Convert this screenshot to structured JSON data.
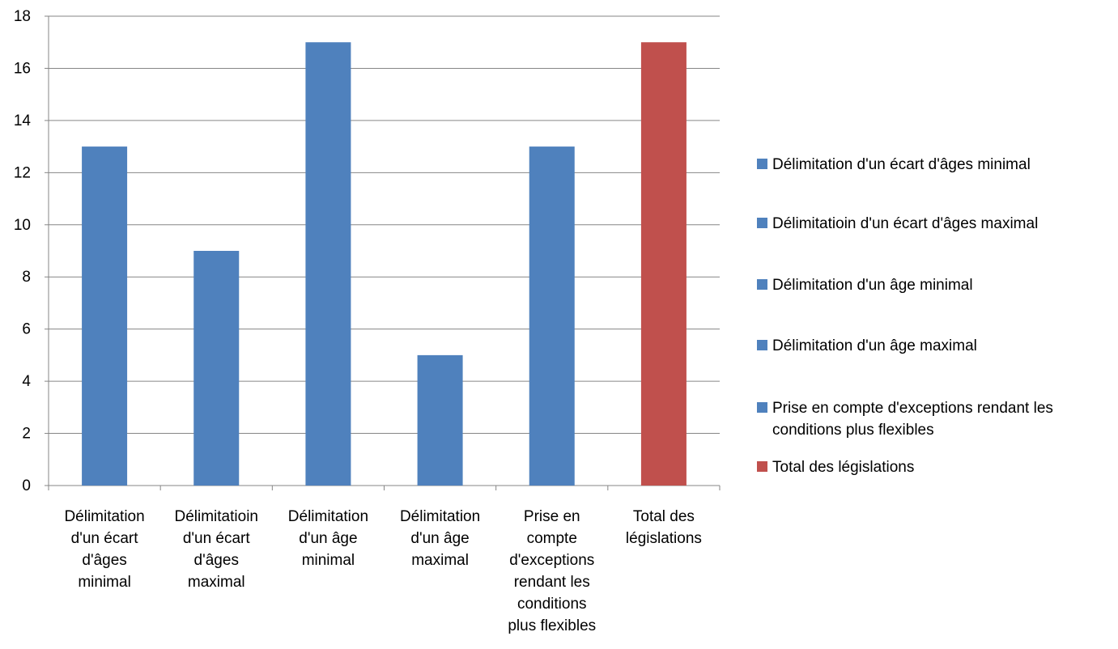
{
  "chart_data": {
    "type": "bar",
    "categories": [
      [
        "Délimitation",
        "d'un écart",
        "d'âges",
        "minimal"
      ],
      [
        "Délimitatioin",
        "d'un écart",
        "d'âges",
        "maximal"
      ],
      [
        "Délimitation",
        "d'un âge",
        "minimal"
      ],
      [
        "Délimitation",
        "d'un âge",
        "maximal"
      ],
      [
        "Prise en",
        "compte",
        "d'exceptions",
        "rendant les",
        "conditions",
        "plus flexibles"
      ],
      [
        "Total des",
        "législations"
      ]
    ],
    "values": [
      13,
      9,
      17,
      5,
      13,
      17
    ],
    "colors": [
      "#4f81bd",
      "#4f81bd",
      "#4f81bd",
      "#4f81bd",
      "#4f81bd",
      "#c0504d"
    ],
    "ylim": [
      0,
      18
    ],
    "yticks": [
      "0",
      "2",
      "4",
      "6",
      "8",
      "10",
      "12",
      "14",
      "16",
      "18"
    ],
    "grid": true,
    "legend_position": "right",
    "legend": [
      {
        "lines": [
          "Délimitation d'un écart d'âges minimal"
        ],
        "color": "#4f81bd"
      },
      {
        "lines": [
          "Délimitatioin d'un écart d'âges maximal"
        ],
        "color": "#4f81bd"
      },
      {
        "lines": [
          "Délimitation d'un âge minimal"
        ],
        "color": "#4f81bd"
      },
      {
        "lines": [
          "Délimitation d'un âge maximal"
        ],
        "color": "#4f81bd"
      },
      {
        "lines": [
          "Prise en compte d'exceptions rendant les",
          "conditions plus flexibles"
        ],
        "color": "#4f81bd"
      },
      {
        "lines": [
          "Total des législations"
        ],
        "color": "#c0504d"
      }
    ],
    "title": "",
    "xlabel": "",
    "ylabel": ""
  }
}
